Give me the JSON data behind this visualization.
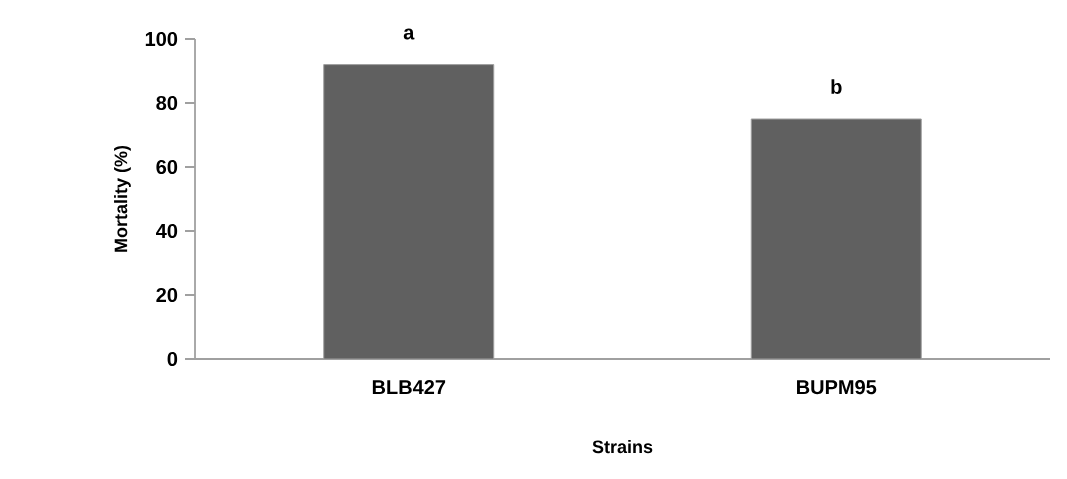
{
  "chart_data": {
    "type": "bar",
    "xlabel": "Strains",
    "ylabel": "Mortality (%)",
    "categories": [
      "BLB427",
      "BUPM95"
    ],
    "values": [
      92,
      75
    ],
    "color": "#606060",
    "ylim": [
      0,
      100
    ],
    "yticks": [
      0,
      20,
      40,
      60,
      80,
      100
    ],
    "annotations": [
      {
        "text": "a",
        "x": "BLB427",
        "y": 92
      },
      {
        "text": "b",
        "x": "BUPM95",
        "y": 75
      }
    ]
  }
}
